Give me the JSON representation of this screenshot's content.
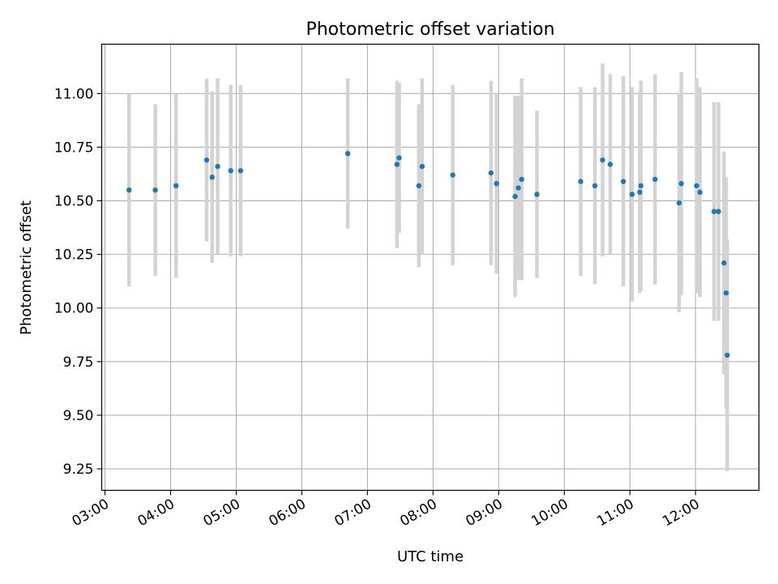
{
  "chart_data": {
    "type": "scatter",
    "title": "Photometric offset variation",
    "xlabel": "UTC time",
    "ylabel": "Photometric offset",
    "xlim": [
      "02:57",
      "12:58"
    ],
    "ylim": [
      9.15,
      11.23
    ],
    "grid": true,
    "x_ticks": [
      "03:00",
      "04:00",
      "05:00",
      "06:00",
      "07:00",
      "08:00",
      "09:00",
      "10:00",
      "11:00",
      "12:00"
    ],
    "y_ticks": [
      "9.25",
      "9.50",
      "9.75",
      "10.00",
      "10.25",
      "10.50",
      "10.75",
      "11.00"
    ],
    "colors": {
      "points": "#1f77b4",
      "error_bars": "#d3d3d3",
      "grid": "#b0b0b0"
    },
    "series": [
      {
        "points": [
          {
            "x": "03:22",
            "y": 10.55,
            "err": 0.45
          },
          {
            "x": "03:46",
            "y": 10.55,
            "err": 0.4
          },
          {
            "x": "04:05",
            "y": 10.57,
            "err": 0.43
          },
          {
            "x": "04:33",
            "y": 10.69,
            "err": 0.38
          },
          {
            "x": "04:38",
            "y": 10.61,
            "err": 0.4
          },
          {
            "x": "04:43",
            "y": 10.66,
            "err": 0.41
          },
          {
            "x": "04:55",
            "y": 10.64,
            "err": 0.4
          },
          {
            "x": "05:04",
            "y": 10.64,
            "err": 0.4
          },
          {
            "x": "06:42",
            "y": 10.72,
            "err": 0.35
          },
          {
            "x": "07:27",
            "y": 10.67,
            "err": 0.39
          },
          {
            "x": "07:29",
            "y": 10.7,
            "err": 0.35
          },
          {
            "x": "07:47",
            "y": 10.57,
            "err": 0.38
          },
          {
            "x": "07:50",
            "y": 10.66,
            "err": 0.41
          },
          {
            "x": "08:18",
            "y": 10.62,
            "err": 0.42
          },
          {
            "x": "08:53",
            "y": 10.63,
            "err": 0.43
          },
          {
            "x": "08:58",
            "y": 10.58,
            "err": 0.42
          },
          {
            "x": "09:15",
            "y": 10.52,
            "err": 0.47
          },
          {
            "x": "09:18",
            "y": 10.56,
            "err": 0.43
          },
          {
            "x": "09:21",
            "y": 10.6,
            "err": 0.47
          },
          {
            "x": "09:35",
            "y": 10.53,
            "err": 0.39
          },
          {
            "x": "10:15",
            "y": 10.59,
            "err": 0.44
          },
          {
            "x": "10:28",
            "y": 10.57,
            "err": 0.46
          },
          {
            "x": "10:35",
            "y": 10.69,
            "err": 0.45
          },
          {
            "x": "10:42",
            "y": 10.67,
            "err": 0.42
          },
          {
            "x": "10:54",
            "y": 10.59,
            "err": 0.49
          },
          {
            "x": "11:02",
            "y": 10.53,
            "err": 0.5
          },
          {
            "x": "11:09",
            "y": 10.54,
            "err": 0.47
          },
          {
            "x": "11:10",
            "y": 10.57,
            "err": 0.49
          },
          {
            "x": "11:23",
            "y": 10.6,
            "err": 0.49
          },
          {
            "x": "11:45",
            "y": 10.49,
            "err": 0.51
          },
          {
            "x": "11:47",
            "y": 10.58,
            "err": 0.52
          },
          {
            "x": "12:01",
            "y": 10.57,
            "err": 0.5
          },
          {
            "x": "12:04",
            "y": 10.54,
            "err": 0.49
          },
          {
            "x": "12:17",
            "y": 10.45,
            "err": 0.51
          },
          {
            "x": "12:21",
            "y": 10.45,
            "err": 0.51
          },
          {
            "x": "12:26",
            "y": 10.21,
            "err": 0.52
          },
          {
            "x": "12:28",
            "y": 10.07,
            "err": 0.54
          },
          {
            "x": "12:29",
            "y": 9.78,
            "err": 0.54
          }
        ]
      }
    ]
  }
}
